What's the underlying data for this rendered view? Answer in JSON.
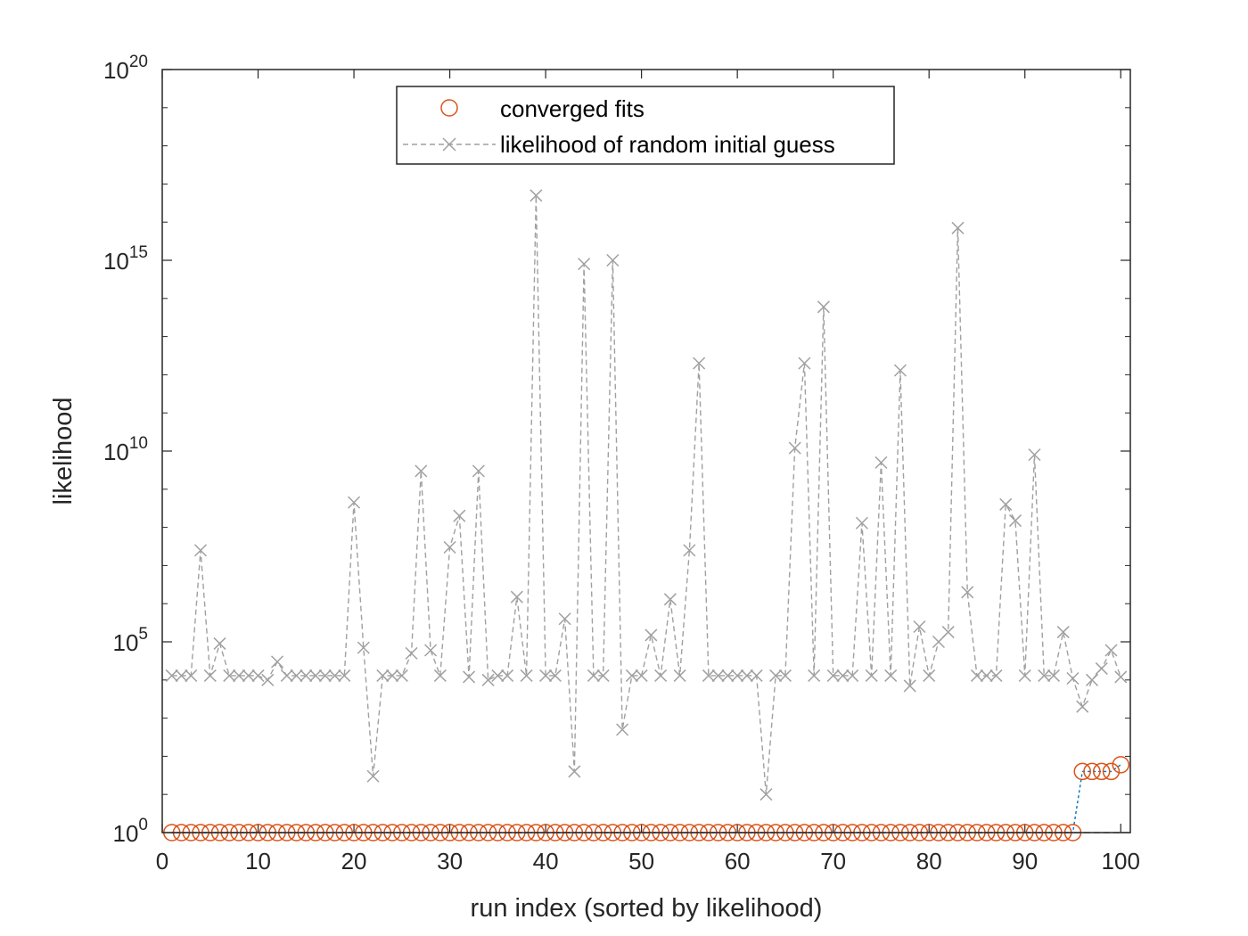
{
  "chart_data": {
    "type": "scatter",
    "title": "",
    "xlabel": "run index (sorted by likelihood)",
    "ylabel": "likelihood",
    "xlim": [
      0,
      101
    ],
    "ylim": [
      1,
      1e+20
    ],
    "yscale": "log",
    "x_ticks": [
      "0",
      "10",
      "20",
      "30",
      "40",
      "50",
      "60",
      "70",
      "80",
      "90",
      "100"
    ],
    "y_ticks": [
      {
        "base": "10",
        "exp": "0"
      },
      {
        "base": "10",
        "exp": "5"
      },
      {
        "base": "10",
        "exp": "10"
      },
      {
        "base": "10",
        "exp": "15"
      },
      {
        "base": "10",
        "exp": "20"
      }
    ],
    "grid": false,
    "legend_position": "top-center",
    "colors": {
      "converged": "#d95319",
      "random": "#a0a0a0",
      "connector": "#0072bd",
      "baseline": "#000000",
      "axes": "#262626"
    },
    "series": [
      {
        "name": "converged fits",
        "marker": "circle",
        "x": [
          1,
          2,
          3,
          4,
          5,
          6,
          7,
          8,
          9,
          10,
          11,
          12,
          13,
          14,
          15,
          16,
          17,
          18,
          19,
          20,
          21,
          22,
          23,
          24,
          25,
          26,
          27,
          28,
          29,
          30,
          31,
          32,
          33,
          34,
          35,
          36,
          37,
          38,
          39,
          40,
          41,
          42,
          43,
          44,
          45,
          46,
          47,
          48,
          49,
          50,
          51,
          52,
          53,
          54,
          55,
          56,
          57,
          58,
          59,
          60,
          61,
          62,
          63,
          64,
          65,
          66,
          67,
          68,
          69,
          70,
          71,
          72,
          73,
          74,
          75,
          76,
          77,
          78,
          79,
          80,
          81,
          82,
          83,
          84,
          85,
          86,
          87,
          88,
          89,
          90,
          91,
          92,
          93,
          94,
          95,
          96,
          97,
          98,
          99,
          100
        ],
        "y": [
          1,
          1,
          1,
          1,
          1,
          1,
          1,
          1,
          1,
          1,
          1,
          1,
          1,
          1,
          1,
          1,
          1,
          1,
          1,
          1,
          1,
          1,
          1,
          1,
          1,
          1,
          1,
          1,
          1,
          1,
          1,
          1,
          1,
          1,
          1,
          1,
          1,
          1,
          1,
          1,
          1,
          1,
          1,
          1,
          1,
          1,
          1,
          1,
          1,
          1,
          1,
          1,
          1,
          1,
          1,
          1,
          1,
          1,
          1,
          1,
          1,
          1,
          1,
          1,
          1,
          1,
          1,
          1,
          1,
          1,
          1,
          1,
          1,
          1,
          1,
          1,
          1,
          1,
          1,
          1,
          1,
          1,
          1,
          1,
          1,
          1,
          1,
          1,
          1,
          1,
          1,
          1,
          1,
          1,
          1,
          40,
          40,
          40,
          40,
          60
        ]
      },
      {
        "name": "likelihood of random initial guess",
        "marker": "x",
        "linestyle": "dashed",
        "x": [
          1,
          2,
          3,
          4,
          5,
          6,
          7,
          8,
          9,
          10,
          11,
          12,
          13,
          14,
          15,
          16,
          17,
          18,
          19,
          20,
          21,
          22,
          23,
          24,
          25,
          26,
          27,
          28,
          29,
          30,
          31,
          32,
          33,
          34,
          35,
          36,
          37,
          38,
          39,
          40,
          41,
          42,
          43,
          44,
          45,
          46,
          47,
          48,
          49,
          50,
          51,
          52,
          53,
          54,
          55,
          56,
          57,
          58,
          59,
          60,
          61,
          62,
          63,
          64,
          65,
          66,
          67,
          68,
          69,
          70,
          71,
          72,
          73,
          74,
          75,
          76,
          77,
          78,
          79,
          80,
          81,
          82,
          83,
          84,
          85,
          86,
          87,
          88,
          89,
          90,
          91,
          92,
          93,
          94,
          95,
          96,
          97,
          98,
          99,
          100
        ],
        "y": [
          13000.0,
          13000.0,
          13000.0,
          25000000.0,
          13000.0,
          90000.0,
          13000.0,
          13000.0,
          13000.0,
          13000.0,
          10000.0,
          30000.0,
          13000.0,
          13000.0,
          13000.0,
          13000.0,
          13000.0,
          13000.0,
          13000.0,
          450000000.0,
          70000.0,
          30,
          13000.0,
          13000.0,
          13000.0,
          50000.0,
          3000000000.0,
          60000.0,
          13000.0,
          30000000.0,
          200000000.0,
          12000.0,
          3000000000.0,
          10000.0,
          13000.0,
          13000.0,
          1500000.0,
          13000.0,
          5e+16,
          13000.0,
          13000.0,
          400000.0,
          40,
          800000000000000.0,
          13000.0,
          13000.0,
          1000000000000000.0,
          500,
          13000.0,
          13000.0,
          150000.0,
          13000.0,
          1300000.0,
          13000.0,
          25000000.0,
          2000000000000.0,
          13000.0,
          13000.0,
          13000.0,
          13000.0,
          13000.0,
          13000.0,
          10,
          13000.0,
          13000.0,
          12000000000.0,
          2000000000000.0,
          13000.0,
          60000000000000.0,
          13000.0,
          13000.0,
          13000.0,
          130000000.0,
          13000.0,
          5000000000.0,
          13000.0,
          1300000000000.0,
          7000,
          250000.0,
          13000.0,
          100000.0,
          180000.0,
          7000000000000000.0,
          2000000.0,
          13000.0,
          13000.0,
          13000.0,
          400000000.0,
          150000000.0,
          13000.0,
          8000000000.0,
          13000.0,
          13000.0,
          180000.0,
          11000.0,
          2000,
          10000.0,
          20000.0,
          60000.0,
          12000.0
        ]
      }
    ]
  }
}
